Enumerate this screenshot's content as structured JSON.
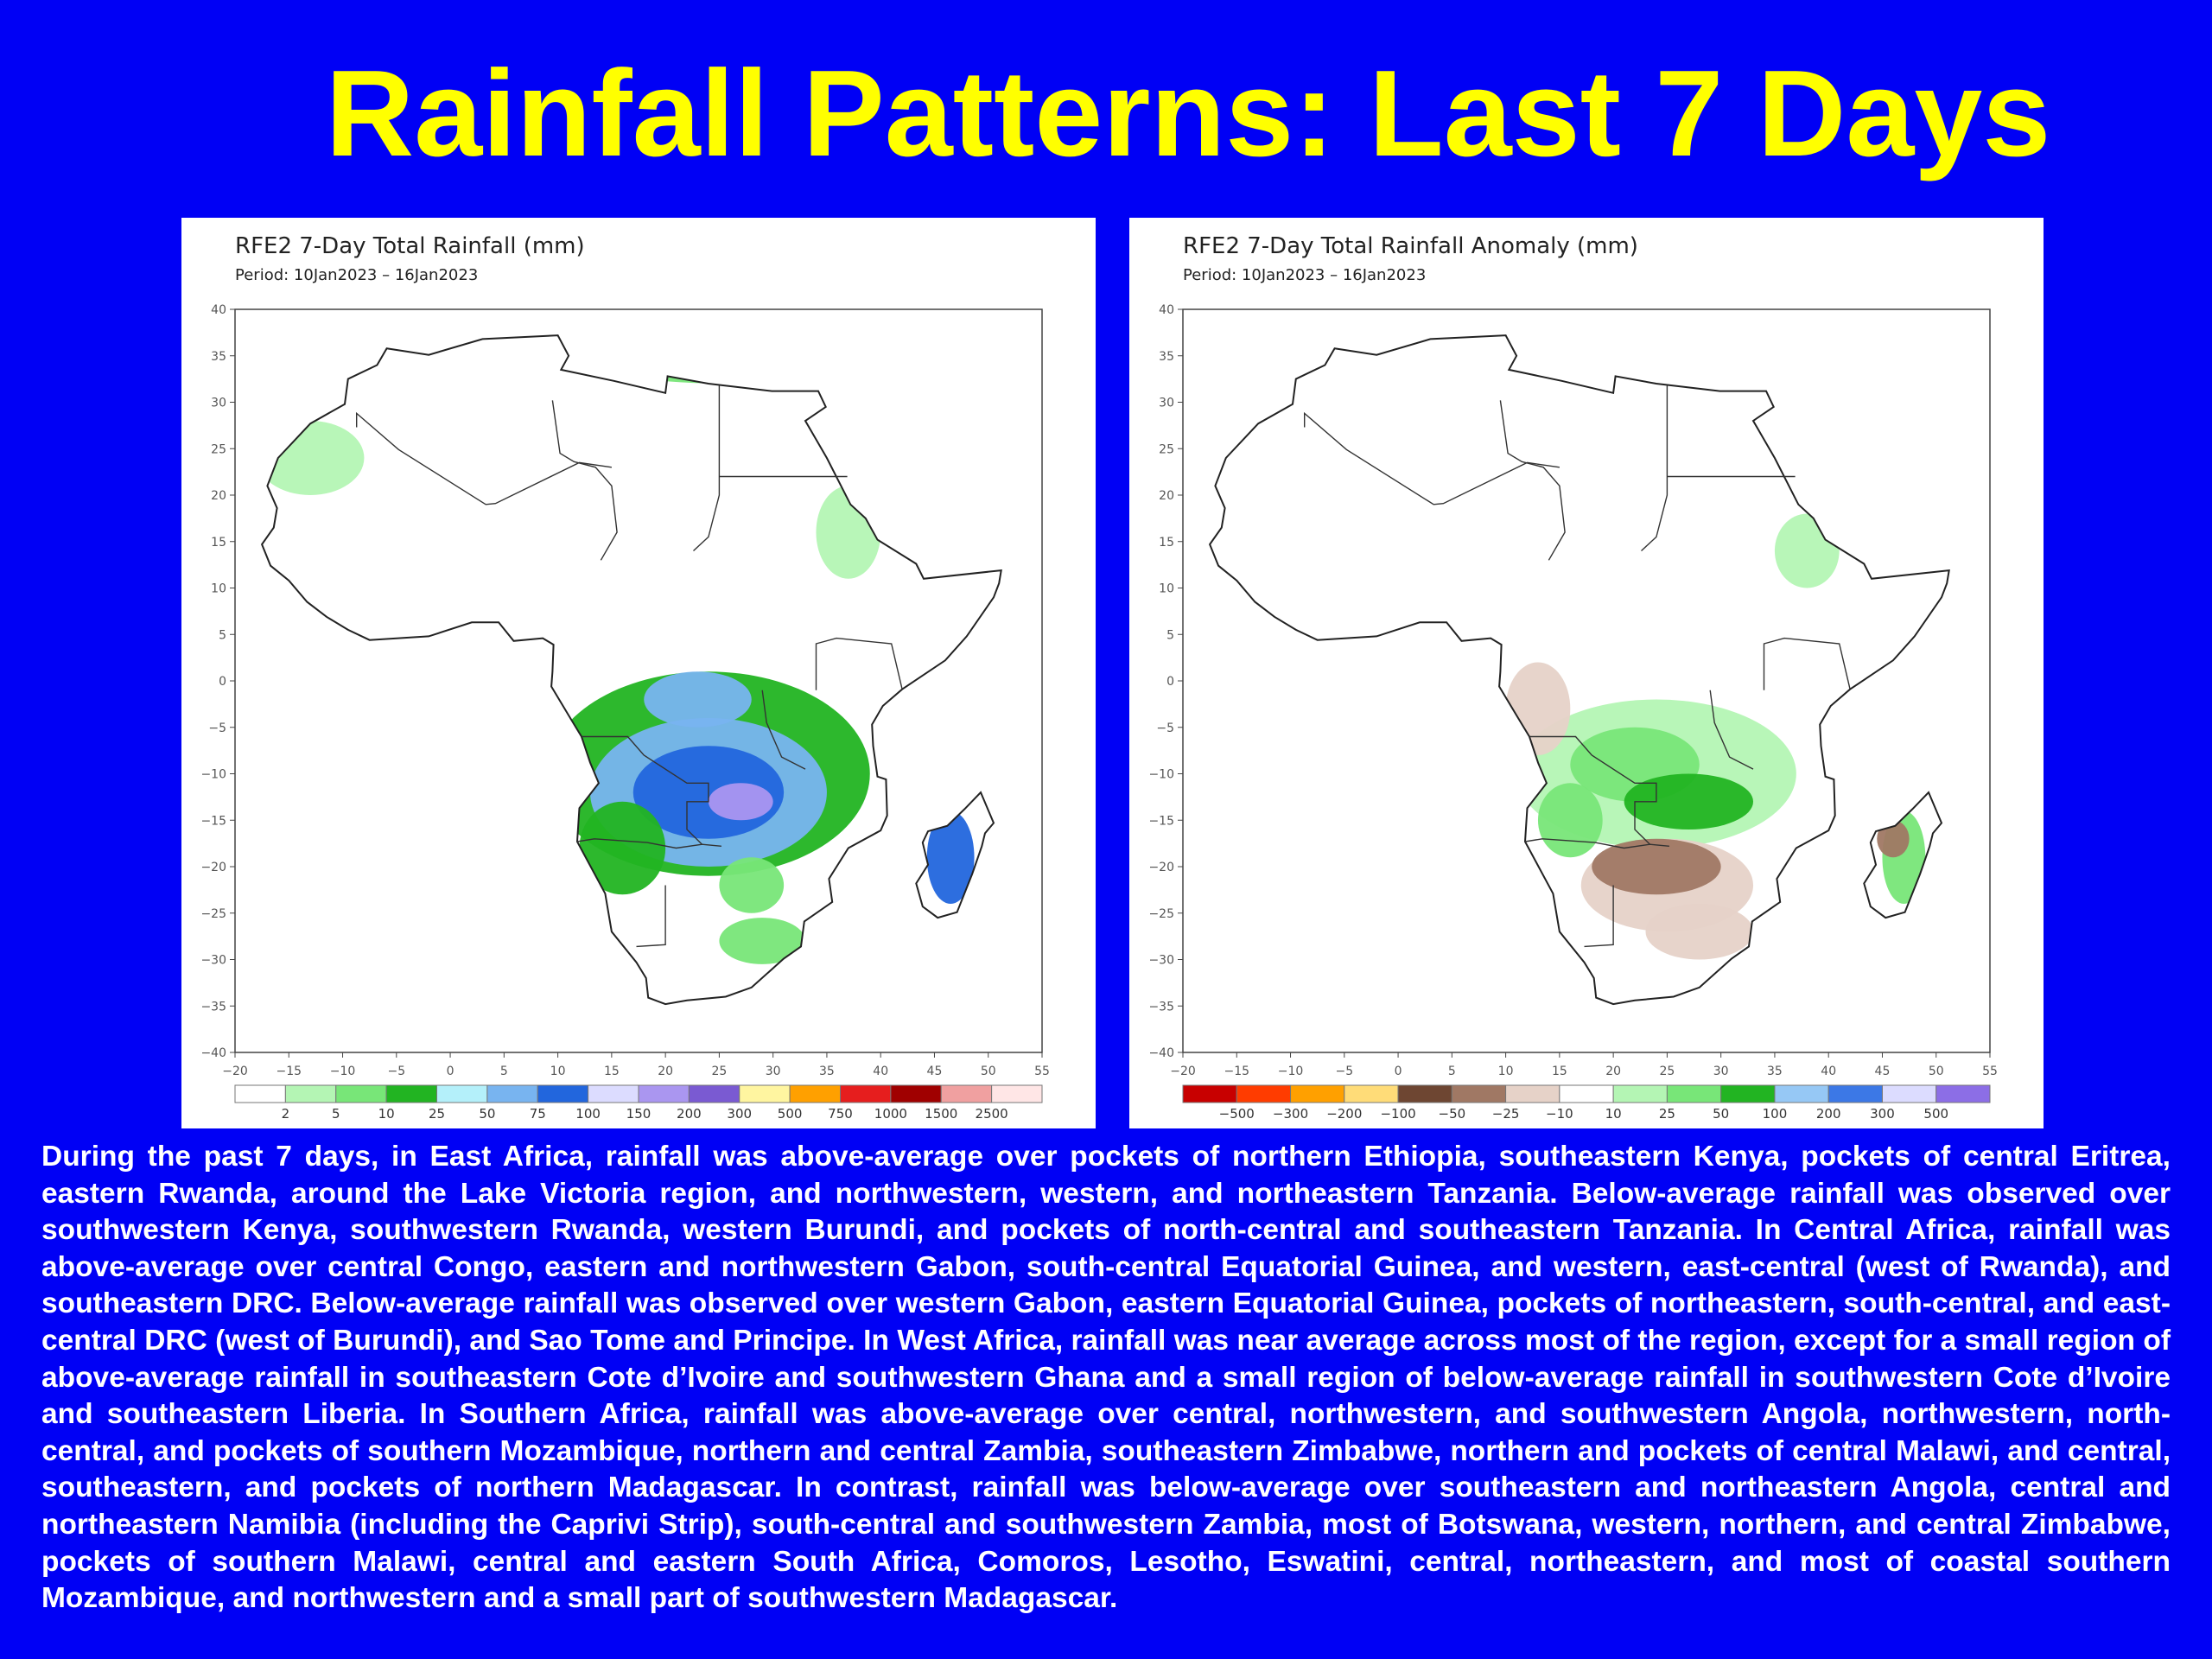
{
  "slide": {
    "title": "Rainfall Patterns: Last 7 Days",
    "background": "#0000f5",
    "title_color": "#ffff00"
  },
  "maps": [
    {
      "title": "RFE2 7-Day Total Rainfall (mm)",
      "period": "Period: 10Jan2023 – 16Jan2023",
      "y_ticks": [
        "40",
        "35",
        "30",
        "25",
        "20",
        "15",
        "10",
        "5",
        "0",
        "−5",
        "−10",
        "−15",
        "−20",
        "−25",
        "−30",
        "−35",
        "−40"
      ],
      "x_ticks": [
        "−20",
        "−15",
        "−10",
        "−5",
        "0",
        "5",
        "10",
        "15",
        "20",
        "25",
        "30",
        "35",
        "40",
        "45",
        "50",
        "55"
      ],
      "legend_labels": [
        "2",
        "5",
        "10",
        "25",
        "50",
        "75",
        "100",
        "150",
        "200",
        "300",
        "500",
        "750",
        "1000",
        "1500",
        "2500"
      ],
      "legend_colors": [
        "#ffffff",
        "#b4f5b4",
        "#78e678",
        "#22b422",
        "#b4f0fa",
        "#78b4f0",
        "#2266dd",
        "#dcdcff",
        "#aa96f0",
        "#7a5ad2",
        "#fff5a0",
        "#ffa000",
        "#e61e1e",
        "#a00000",
        "#f0a0a0",
        "#ffe6e6"
      ]
    },
    {
      "title": "RFE2 7-Day Total Rainfall Anomaly (mm)",
      "period": "Period: 10Jan2023 – 16Jan2023",
      "y_ticks": [
        "40",
        "35",
        "30",
        "25",
        "20",
        "15",
        "10",
        "5",
        "0",
        "−5",
        "−10",
        "−15",
        "−20",
        "−25",
        "−30",
        "−35",
        "−40"
      ],
      "x_ticks": [
        "−20",
        "−15",
        "−10",
        "−5",
        "0",
        "5",
        "10",
        "15",
        "20",
        "25",
        "30",
        "35",
        "40",
        "45",
        "50",
        "55"
      ],
      "legend_labels": [
        "−500",
        "−300",
        "−200",
        "−100",
        "−50",
        "−25",
        "−10",
        "10",
        "25",
        "50",
        "100",
        "200",
        "300",
        "500"
      ],
      "legend_colors": [
        "#c80000",
        "#ff3c00",
        "#ffa000",
        "#ffdc78",
        "#6e4632",
        "#a07864",
        "#e6d2c8",
        "#ffffff",
        "#b4f5b4",
        "#78e678",
        "#22b422",
        "#96c8f5",
        "#3c78e6",
        "#dcdcff",
        "#8c6ee6"
      ]
    }
  ],
  "body_text": "During the past 7 days, in East Africa, rainfall was above-average over pockets of northern Ethiopia, southeastern Kenya, pockets of central Eritrea, eastern Rwanda, around the Lake Victoria region, and northwestern, western, and northeastern Tanzania. Below-average rainfall was observed over southwestern Kenya, southwestern Rwanda, western Burundi, and pockets of north-central and southeastern Tanzania. In Central Africa, rainfall was above-average over central Congo, eastern and northwestern Gabon, south-central Equatorial Guinea, and western, east-central (west of Rwanda), and southeastern DRC. Below-average rainfall was observed over western Gabon, eastern Equatorial Guinea, pockets of northeastern, south-central, and east-central DRC (west of Burundi), and Sao Tome and Principe. In West Africa, rainfall was near average across most of the region, except for a small region of above-average rainfall in southeastern Cote d’Ivoire and southwestern Ghana and a small region of below-average rainfall in southwestern Cote d’Ivoire and southeastern Liberia. In Southern Africa, rainfall was above-average over central, northwestern, and southwestern Angola, northwestern, north-central, and pockets of southern Mozambique, northern and central Zambia, southeastern Zimbabwe, northern and pockets of central Malawi, and central, southeastern, and pockets of northern Madagascar. In contrast, rainfall was below-average over southeastern and northeastern Angola, central and northeastern Namibia (including the Caprivi Strip), south-central and southwestern Zambia, most of Botswana, western, northern, and central Zimbabwe, pockets of southern Malawi, central and eastern South Africa, Comoros, Lesotho, Eswatini, central, northeastern, and most of coastal southern Mozambique, and northwestern and a small part of southwestern Madagascar."
}
